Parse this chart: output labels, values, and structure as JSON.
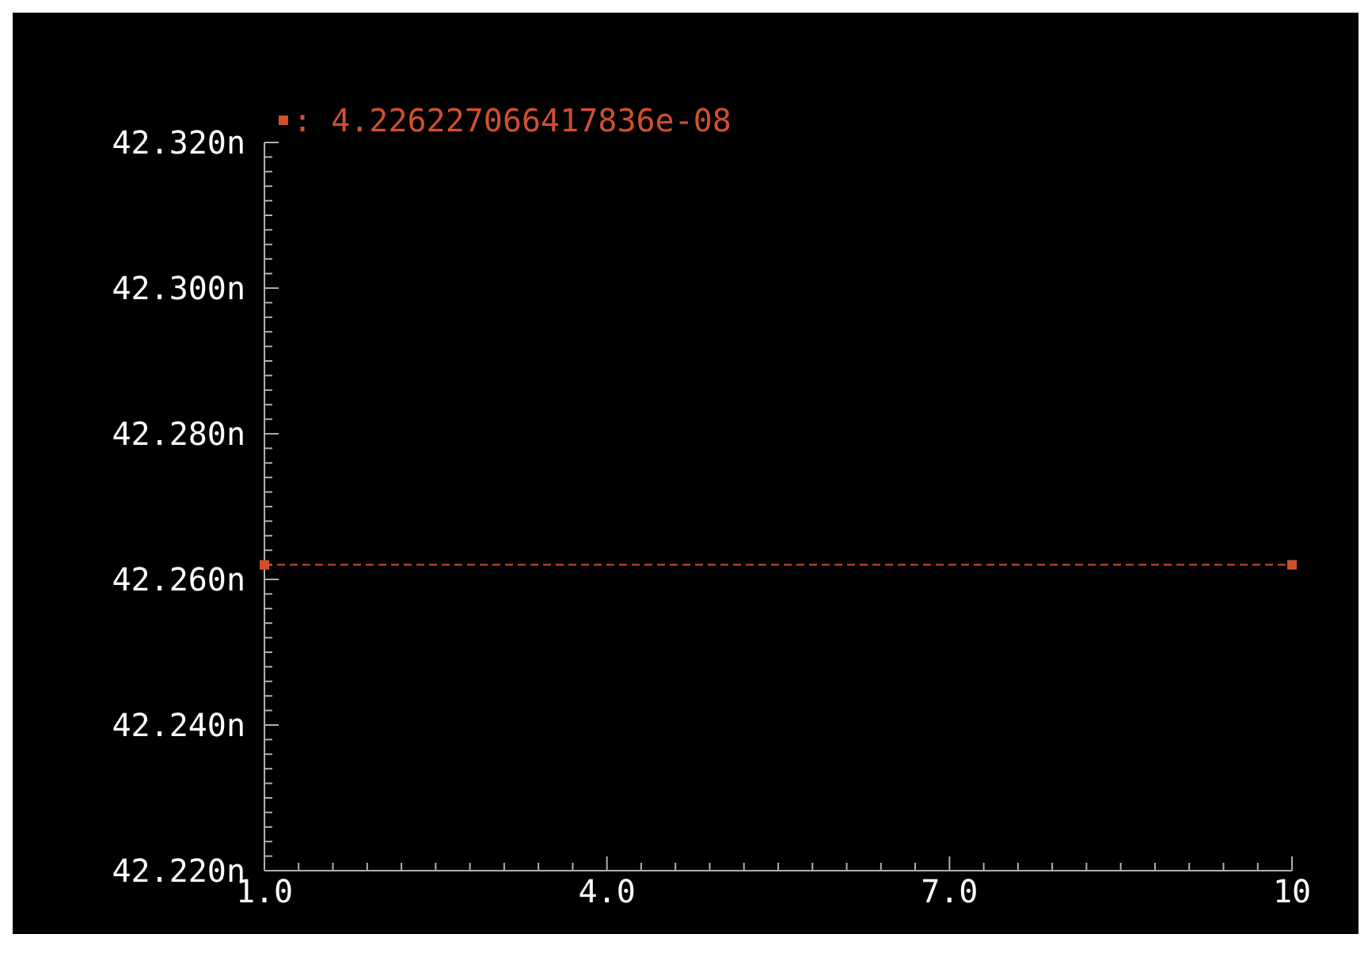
{
  "chart_data": {
    "type": "line",
    "legend": "top left",
    "marker": "square",
    "line_style": "dashed",
    "x": [
      1,
      10
    ],
    "series": [
      {
        "name": ": 4.226227066417836e-08",
        "color": "#d0502e",
        "values": [
          42.262,
          42.262
        ]
      }
    ],
    "xlim": [
      1,
      10
    ],
    "xticks": [
      {
        "value": 1,
        "label": "1.0"
      },
      {
        "value": 1.3,
        "label": null
      },
      {
        "value": 1.6,
        "label": null
      },
      {
        "value": 1.9,
        "label": null
      },
      {
        "value": 2.2,
        "label": null
      },
      {
        "value": 2.5,
        "label": null
      },
      {
        "value": 2.8,
        "label": null
      },
      {
        "value": 3.1,
        "label": null
      },
      {
        "value": 3.4,
        "label": null
      },
      {
        "value": 3.7,
        "label": null
      },
      {
        "value": 4,
        "label": "4.0"
      },
      {
        "value": 4.3,
        "label": null
      },
      {
        "value": 4.6,
        "label": null
      },
      {
        "value": 4.9,
        "label": null
      },
      {
        "value": 5.2,
        "label": null
      },
      {
        "value": 5.5,
        "label": null
      },
      {
        "value": 5.8,
        "label": null
      },
      {
        "value": 6.1,
        "label": null
      },
      {
        "value": 6.4,
        "label": null
      },
      {
        "value": 6.7,
        "label": null
      },
      {
        "value": 7,
        "label": "7.0"
      },
      {
        "value": 7.3,
        "label": null
      },
      {
        "value": 7.6,
        "label": null
      },
      {
        "value": 7.9,
        "label": null
      },
      {
        "value": 8.2,
        "label": null
      },
      {
        "value": 8.5,
        "label": null
      },
      {
        "value": 8.8,
        "label": null
      },
      {
        "value": 9.1,
        "label": null
      },
      {
        "value": 9.4,
        "label": null
      },
      {
        "value": 9.7,
        "label": null
      },
      {
        "value": 10,
        "label": "10"
      }
    ],
    "ylim": [
      42.22,
      42.32
    ],
    "yticks": [
      {
        "value": 42.22,
        "label": "42.220n"
      },
      {
        "value": 42.222,
        "label": null
      },
      {
        "value": 42.224,
        "label": null
      },
      {
        "value": 42.226,
        "label": null
      },
      {
        "value": 42.228,
        "label": null
      },
      {
        "value": 42.23,
        "label": null
      },
      {
        "value": 42.232,
        "label": null
      },
      {
        "value": 42.234,
        "label": null
      },
      {
        "value": 42.236,
        "label": null
      },
      {
        "value": 42.238,
        "label": null
      },
      {
        "value": 42.24,
        "label": "42.240n"
      },
      {
        "value": 42.242,
        "label": null
      },
      {
        "value": 42.244,
        "label": null
      },
      {
        "value": 42.246,
        "label": null
      },
      {
        "value": 42.248,
        "label": null
      },
      {
        "value": 42.25,
        "label": null
      },
      {
        "value": 42.252,
        "label": null
      },
      {
        "value": 42.254,
        "label": null
      },
      {
        "value": 42.256,
        "label": null
      },
      {
        "value": 42.258,
        "label": null
      },
      {
        "value": 42.26,
        "label": "42.260n"
      },
      {
        "value": 42.262,
        "label": null
      },
      {
        "value": 42.264,
        "label": null
      },
      {
        "value": 42.266,
        "label": null
      },
      {
        "value": 42.268,
        "label": null
      },
      {
        "value": 42.27,
        "label": null
      },
      {
        "value": 42.272,
        "label": null
      },
      {
        "value": 42.274,
        "label": null
      },
      {
        "value": 42.276,
        "label": null
      },
      {
        "value": 42.278,
        "label": null
      },
      {
        "value": 42.28,
        "label": "42.280n"
      },
      {
        "value": 42.282,
        "label": null
      },
      {
        "value": 42.284,
        "label": null
      },
      {
        "value": 42.286,
        "label": null
      },
      {
        "value": 42.288,
        "label": null
      },
      {
        "value": 42.29,
        "label": null
      },
      {
        "value": 42.292,
        "label": null
      },
      {
        "value": 42.294,
        "label": null
      },
      {
        "value": 42.296,
        "label": null
      },
      {
        "value": 42.298,
        "label": null
      },
      {
        "value": 42.3,
        "label": "42.300n"
      },
      {
        "value": 42.302,
        "label": null
      },
      {
        "value": 42.304,
        "label": null
      },
      {
        "value": 42.306,
        "label": null
      },
      {
        "value": 42.308,
        "label": null
      },
      {
        "value": 42.31,
        "label": null
      },
      {
        "value": 42.312,
        "label": null
      },
      {
        "value": 42.314,
        "label": null
      },
      {
        "value": 42.316,
        "label": null
      },
      {
        "value": 42.318,
        "label": null
      },
      {
        "value": 42.32,
        "label": "42.320n"
      }
    ]
  }
}
